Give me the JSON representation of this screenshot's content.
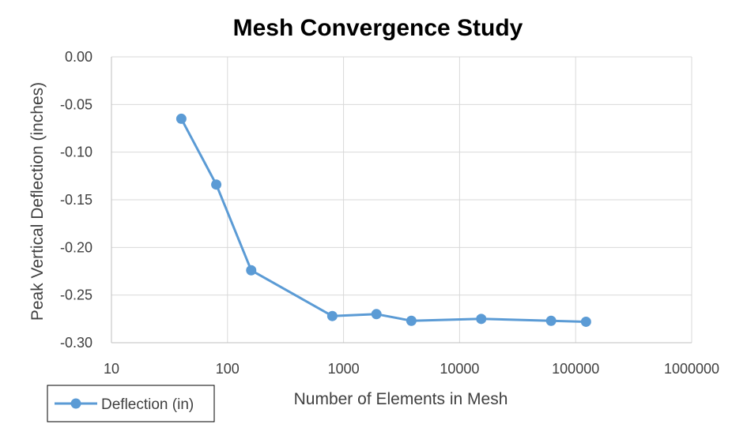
{
  "chart_data": {
    "type": "line",
    "title": "Mesh Convergence Study",
    "xlabel": "Number of Elements in Mesh",
    "ylabel": "Peak Vertical Deflection (inches)",
    "x_scale": "log",
    "xlim": [
      10,
      1000000
    ],
    "ylim": [
      -0.3,
      0.0
    ],
    "x_ticks": [
      "10",
      "100",
      "1000",
      "10000",
      "100000",
      "1000000"
    ],
    "y_ticks": [
      "0.00",
      "-0.05",
      "-0.10",
      "-0.15",
      "-0.20",
      "-0.25",
      "-0.30"
    ],
    "grid": true,
    "legend_position": "bottom-left",
    "series": [
      {
        "name": "Deflection (in)",
        "color": "#5B9BD5",
        "x": [
          40,
          80,
          160,
          800,
          1920,
          3840,
          15360,
          61440,
          122880
        ],
        "y": [
          -0.065,
          -0.134,
          -0.224,
          -0.272,
          -0.27,
          -0.277,
          -0.275,
          -0.277,
          -0.278
        ]
      }
    ]
  }
}
